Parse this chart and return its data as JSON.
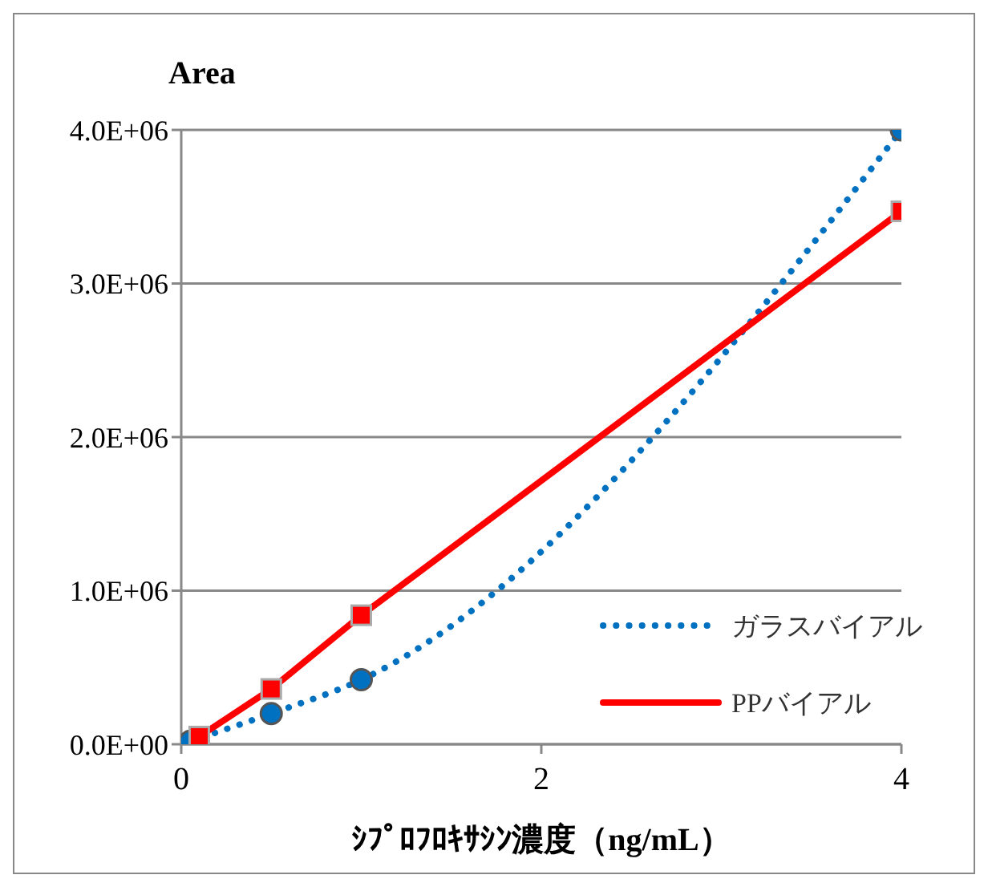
{
  "chart_data": {
    "type": "line",
    "ylabel": "Area",
    "xlabel": "ｼﾌﾟﾛﾌﾛｷｻｼﾝ濃度（ng/mL）",
    "xlim": [
      0,
      4
    ],
    "xticks": [
      0,
      2,
      4
    ],
    "ylim": [
      0,
      4000000
    ],
    "yticks": [
      {
        "value": 0,
        "label": "0.0E+00"
      },
      {
        "value": 1000000,
        "label": "1.0E+06"
      },
      {
        "value": 2000000,
        "label": "2.0E+06"
      },
      {
        "value": 3000000,
        "label": "3.0E+06"
      },
      {
        "value": 4000000,
        "label": "4.0E+06"
      }
    ],
    "grid": "y",
    "legend": "bottom right",
    "series": [
      {
        "name": "ガラスバイアル",
        "color": "#0070c0",
        "x": [
          0.05,
          0.5,
          1,
          4
        ],
        "values": [
          20000,
          200000,
          420000,
          4000000
        ],
        "marker": "circle",
        "line_style": "dotted"
      },
      {
        "name": "PPバイアル",
        "color": "#ff0000",
        "x": [
          0.1,
          0.5,
          1,
          4
        ],
        "values": [
          50000,
          360000,
          840000,
          3470000
        ],
        "marker": "square",
        "line_style": "solid"
      }
    ]
  }
}
